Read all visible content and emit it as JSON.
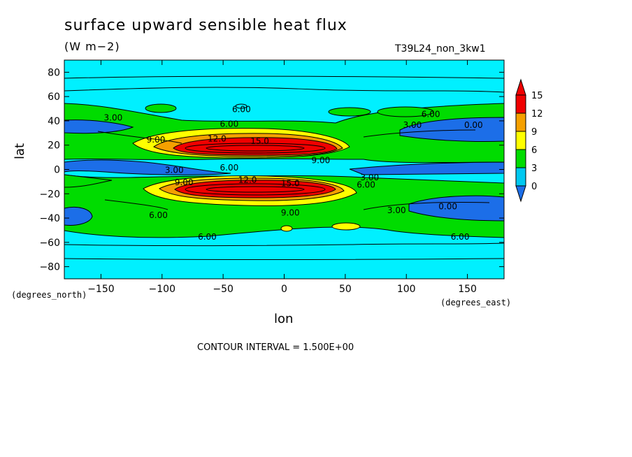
{
  "header": {
    "title": "surface upward sensible heat flux",
    "units": "(W m−2)",
    "run_id": "T39L24_non_3kw1"
  },
  "footer": {
    "contour_interval": "CONTOUR INTERVAL = 1.500E+00"
  },
  "chart_data": {
    "type": "heatmap",
    "title": "surface upward sensible heat flux",
    "xlabel": "lon",
    "ylabel": "lat",
    "xunit": "(degrees_east)",
    "yunit": "(degrees_north)",
    "xlim": [
      -180,
      180
    ],
    "ylim": [
      -90,
      90
    ],
    "xticks": [
      -150,
      -100,
      -50,
      0,
      50,
      100,
      150
    ],
    "yticks": [
      -80,
      -60,
      -40,
      -20,
      0,
      20,
      40,
      60,
      80
    ],
    "colorbar": {
      "levels": [
        0,
        3,
        6,
        9,
        12,
        15
      ],
      "colors": [
        "#1c6ee8",
        "#00c8f0",
        "#00dc00",
        "#ffff00",
        "#f5a000",
        "#f00000"
      ],
      "extend_low_color": "#1c6ee8",
      "extend_high_color": "#f00000"
    },
    "contour_labels": [
      {
        "text": "6.00",
        "lon": -35,
        "lat": 50
      },
      {
        "text": "6.00",
        "lon": -45,
        "lat": 38
      },
      {
        "text": "3.00",
        "lon": -140,
        "lat": 43
      },
      {
        "text": "9.00",
        "lon": -105,
        "lat": 25
      },
      {
        "text": "12.0",
        "lon": -55,
        "lat": 26
      },
      {
        "text": "15.0",
        "lon": -20,
        "lat": 24
      },
      {
        "text": "6.00",
        "lon": 120,
        "lat": 46
      },
      {
        "text": "3.00",
        "lon": 105,
        "lat": 37
      },
      {
        "text": "0.00",
        "lon": 155,
        "lat": 37
      },
      {
        "text": "3.00",
        "lon": -90,
        "lat": 0
      },
      {
        "text": "6.00",
        "lon": -45,
        "lat": 2
      },
      {
        "text": "9.00",
        "lon": 30,
        "lat": 8
      },
      {
        "text": "3.00",
        "lon": 70,
        "lat": -6
      },
      {
        "text": "6.00",
        "lon": 67,
        "lat": -12
      },
      {
        "text": "9.00",
        "lon": -82,
        "lat": -10
      },
      {
        "text": "12.0",
        "lon": -30,
        "lat": -8
      },
      {
        "text": "15.0",
        "lon": 5,
        "lat": -11
      },
      {
        "text": "6.00",
        "lon": -103,
        "lat": -37
      },
      {
        "text": "9.00",
        "lon": 5,
        "lat": -35
      },
      {
        "text": "3.00",
        "lon": 92,
        "lat": -33
      },
      {
        "text": "0.00",
        "lon": 134,
        "lat": -30
      },
      {
        "text": "6.00",
        "lon": -63,
        "lat": -55
      },
      {
        "text": "6.00",
        "lon": 144,
        "lat": -55
      }
    ]
  }
}
